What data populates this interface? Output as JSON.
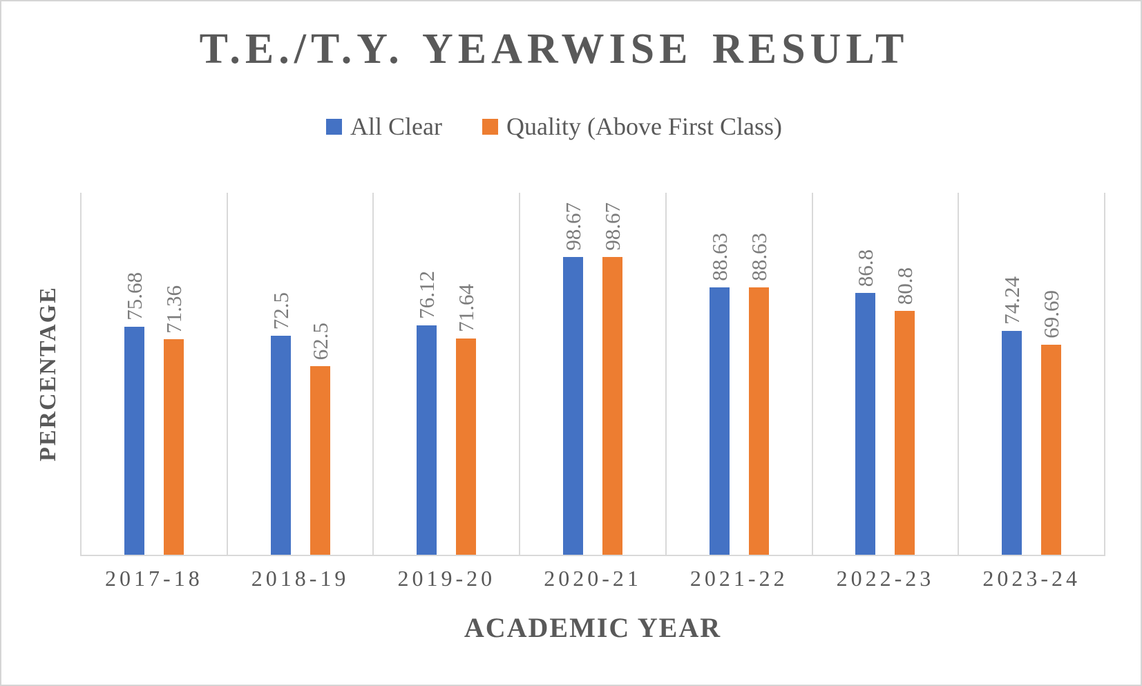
{
  "chart_data": {
    "type": "bar",
    "title": "T.E./T.Y. YEARWISE RESULT",
    "xlabel": "ACADEMIC YEAR",
    "ylabel": "PERCENTAGE",
    "categories": [
      "2017-18",
      "2018-19",
      "2019-20",
      "2020-21",
      "2021-22",
      "2022-23",
      "2023-24"
    ],
    "series": [
      {
        "name": "All Clear",
        "color": "#4472C4",
        "values": [
          75.68,
          72.5,
          76.12,
          98.67,
          88.63,
          86.8,
          74.24
        ]
      },
      {
        "name": "Quality (Above First Class)",
        "color": "#ED7D31",
        "values": [
          71.36,
          62.5,
          71.64,
          98.67,
          88.63,
          80.8,
          69.69
        ]
      }
    ],
    "data_labels_shown": true,
    "data_label_rotation_deg": -90,
    "ylim": [
      0,
      120
    ],
    "grid": "vertical category separators only",
    "legend_position": "top-center"
  },
  "colors": {
    "series_all_clear": "#4472C4",
    "series_quality": "#ED7D31",
    "title_text": "#595959",
    "axis_text": "#595959",
    "data_label_text": "#7c7c7c",
    "gridline": "#d9d9d9",
    "outer_border": "#d5d5d5",
    "background": "#ffffff"
  }
}
